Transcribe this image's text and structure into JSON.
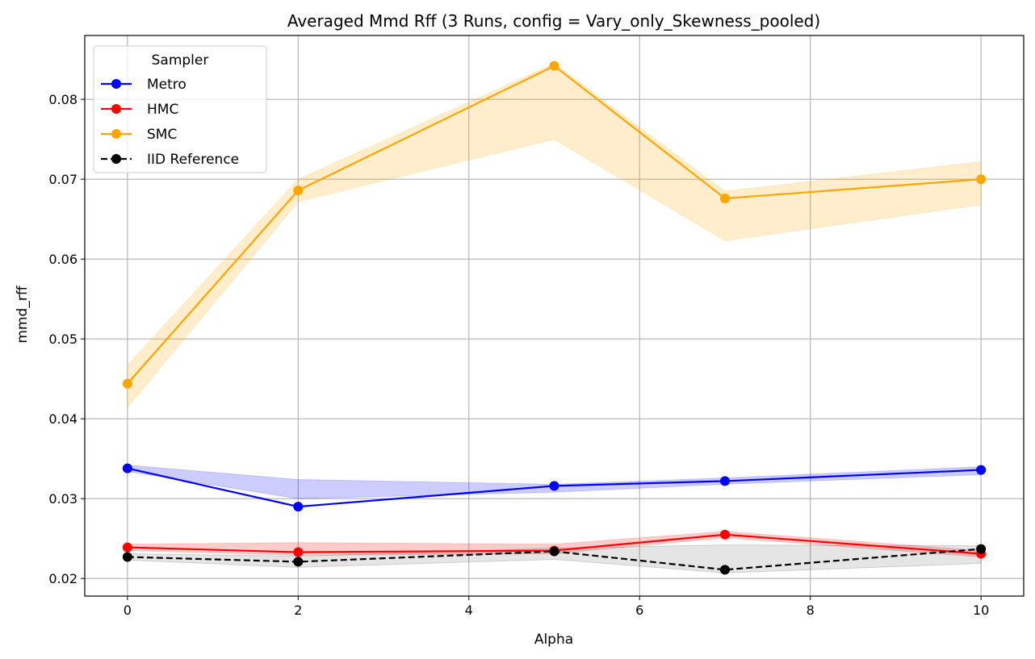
{
  "chart_data": {
    "type": "line",
    "title": "Averaged Mmd Rff (3 Runs, config = Vary_only_Skewness_pooled)",
    "xlabel": "Alpha",
    "ylabel": "mmd_rff",
    "xlim": [
      -0.5,
      10.5
    ],
    "ylim": [
      0.0178,
      0.088
    ],
    "xticks": [
      0,
      2,
      4,
      6,
      8,
      10
    ],
    "yticks": [
      0.02,
      0.03,
      0.04,
      0.05,
      0.06,
      0.07,
      0.08
    ],
    "ytick_labels": [
      "0.02",
      "0.03",
      "0.04",
      "0.05",
      "0.06",
      "0.07",
      "0.08"
    ],
    "grid": true,
    "legend": {
      "title": "Sampler",
      "placement": "top-left"
    },
    "x": [
      0,
      2,
      5,
      7,
      10
    ],
    "series": [
      {
        "name": "Metro",
        "color": "#0000ff",
        "dashed": false,
        "values": [
          0.0338,
          0.029,
          0.0316,
          0.0322,
          0.0336
        ],
        "lower": [
          0.0334,
          0.03,
          0.0308,
          0.0318,
          0.033
        ],
        "upper": [
          0.0342,
          0.0324,
          0.0318,
          0.0326,
          0.034
        ]
      },
      {
        "name": "HMC",
        "color": "#ff0000",
        "dashed": false,
        "values": [
          0.0239,
          0.0233,
          0.0235,
          0.0255,
          0.0231
        ],
        "lower": [
          0.0235,
          0.0229,
          0.0231,
          0.0251,
          0.0227
        ],
        "upper": [
          0.0243,
          0.0245,
          0.0243,
          0.0259,
          0.0235
        ]
      },
      {
        "name": "SMC",
        "color": "#ffa500",
        "dashed": false,
        "values": [
          0.0444,
          0.0686,
          0.0842,
          0.0676,
          0.07
        ],
        "lower": [
          0.0414,
          0.0672,
          0.075,
          0.0623,
          0.0668
        ],
        "upper": [
          0.0467,
          0.07,
          0.0845,
          0.0685,
          0.0722
        ]
      },
      {
        "name": "IID Reference",
        "color": "#000000",
        "dashed": true,
        "values": [
          0.0227,
          0.0221,
          0.0234,
          0.0211,
          0.0237
        ],
        "lower": [
          0.0223,
          0.0214,
          0.0224,
          0.0207,
          0.0219
        ],
        "upper": [
          0.0231,
          0.0228,
          0.0238,
          0.0242,
          0.0241
        ]
      }
    ]
  }
}
